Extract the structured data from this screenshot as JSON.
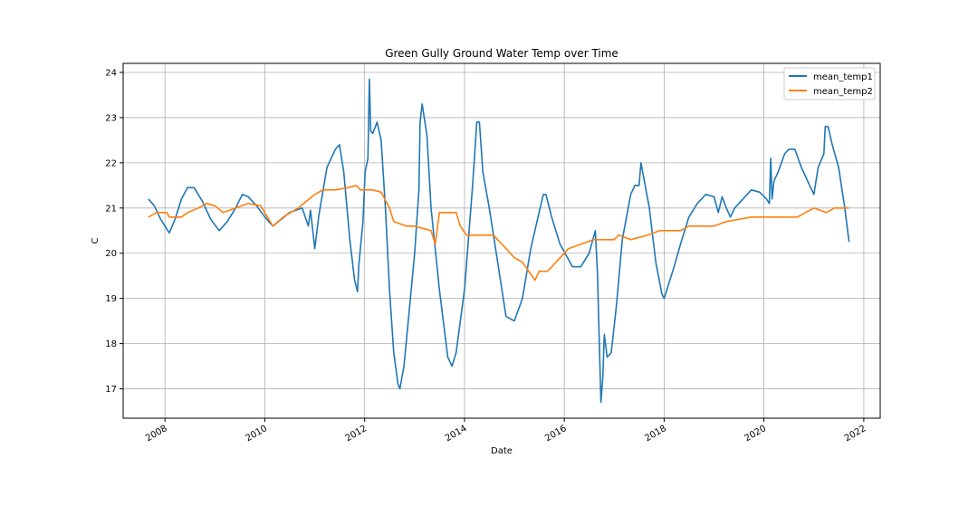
{
  "chart_data": {
    "type": "line",
    "title": "Green Gully Ground Water Temp over Time",
    "xlabel": "Date",
    "ylabel": "C",
    "x_axis_type": "date",
    "xlim": [
      "2007-03-01",
      "2022-05-01"
    ],
    "ylim": [
      16.35,
      24.2
    ],
    "grid": true,
    "legend_position": "top-right",
    "x_ticks": [
      "2008",
      "2010",
      "2012",
      "2014",
      "2016",
      "2018",
      "2020",
      "2022"
    ],
    "y_ticks": [
      17,
      18,
      19,
      20,
      21,
      22,
      23,
      24
    ],
    "series": [
      {
        "name": "mean_temp1",
        "color": "#1f77b4",
        "points": [
          [
            "2007-09-01",
            21.2
          ],
          [
            "2007-10-15",
            21.05
          ],
          [
            "2007-12-01",
            20.75
          ],
          [
            "2008-01-01",
            20.6
          ],
          [
            "2008-02-01",
            20.45
          ],
          [
            "2008-03-15",
            20.75
          ],
          [
            "2008-05-01",
            21.2
          ],
          [
            "2008-06-15",
            21.45
          ],
          [
            "2008-08-01",
            21.45
          ],
          [
            "2008-10-01",
            21.15
          ],
          [
            "2008-12-01",
            20.75
          ],
          [
            "2009-02-01",
            20.5
          ],
          [
            "2009-04-01",
            20.7
          ],
          [
            "2009-06-01",
            21.0
          ],
          [
            "2009-07-20",
            21.3
          ],
          [
            "2009-09-01",
            21.25
          ],
          [
            "2009-11-01",
            21.05
          ],
          [
            "2010-01-01",
            20.8
          ],
          [
            "2010-03-01",
            20.6
          ],
          [
            "2010-07-01",
            20.9
          ],
          [
            "2010-10-01",
            21.0
          ],
          [
            "2010-11-15",
            20.6
          ],
          [
            "2010-12-01",
            20.95
          ],
          [
            "2011-01-01",
            20.1
          ],
          [
            "2011-02-01",
            20.85
          ],
          [
            "2011-04-01",
            21.9
          ],
          [
            "2011-06-01",
            22.3
          ],
          [
            "2011-07-01",
            22.4
          ],
          [
            "2011-08-01",
            21.8
          ],
          [
            "2011-09-15",
            20.3
          ],
          [
            "2011-10-20",
            19.4
          ],
          [
            "2011-11-10",
            19.15
          ],
          [
            "2011-11-20",
            19.75
          ],
          [
            "2011-12-20",
            20.7
          ],
          [
            "2012-01-05",
            21.8
          ],
          [
            "2012-01-25",
            22.1
          ],
          [
            "2012-02-05",
            23.85
          ],
          [
            "2012-02-15",
            22.7
          ],
          [
            "2012-03-01",
            22.65
          ],
          [
            "2012-04-01",
            22.9
          ],
          [
            "2012-05-01",
            22.5
          ],
          [
            "2012-06-01",
            21.0
          ],
          [
            "2012-07-01",
            19.2
          ],
          [
            "2012-08-01",
            17.8
          ],
          [
            "2012-09-01",
            17.1
          ],
          [
            "2012-09-15",
            17.0
          ],
          [
            "2012-10-15",
            17.5
          ],
          [
            "2012-12-01",
            19.0
          ],
          [
            "2013-01-01",
            20.0
          ],
          [
            "2013-02-01",
            21.4
          ],
          [
            "2013-02-10",
            22.9
          ],
          [
            "2013-02-25",
            23.3
          ],
          [
            "2013-04-01",
            22.6
          ],
          [
            "2013-05-01",
            21.0
          ],
          [
            "2013-07-01",
            19.2
          ],
          [
            "2013-09-01",
            17.7
          ],
          [
            "2013-10-01",
            17.5
          ],
          [
            "2013-11-01",
            17.8
          ],
          [
            "2014-01-01",
            19.2
          ],
          [
            "2014-03-01",
            21.5
          ],
          [
            "2014-04-01",
            22.9
          ],
          [
            "2014-04-20",
            22.9
          ],
          [
            "2014-05-15",
            21.8
          ],
          [
            "2014-07-01",
            21.0
          ],
          [
            "2014-09-01",
            19.8
          ],
          [
            "2014-11-01",
            18.6
          ],
          [
            "2015-01-01",
            18.5
          ],
          [
            "2015-03-01",
            19.0
          ],
          [
            "2015-05-01",
            20.1
          ],
          [
            "2015-07-01",
            20.9
          ],
          [
            "2015-08-01",
            21.3
          ],
          [
            "2015-08-20",
            21.3
          ],
          [
            "2015-10-01",
            20.8
          ],
          [
            "2015-12-01",
            20.2
          ],
          [
            "2016-03-01",
            19.7
          ],
          [
            "2016-05-01",
            19.7
          ],
          [
            "2016-07-01",
            20.0
          ],
          [
            "2016-08-15",
            20.5
          ],
          [
            "2016-09-01",
            19.5
          ],
          [
            "2016-09-10",
            18.4
          ],
          [
            "2016-09-25",
            16.7
          ],
          [
            "2016-10-10",
            17.3
          ],
          [
            "2016-10-20",
            18.2
          ],
          [
            "2016-11-10",
            17.7
          ],
          [
            "2016-12-10",
            17.8
          ],
          [
            "2017-01-15",
            18.8
          ],
          [
            "2017-03-01",
            20.3
          ],
          [
            "2017-05-01",
            21.3
          ],
          [
            "2017-06-01",
            21.5
          ],
          [
            "2017-07-01",
            21.5
          ],
          [
            "2017-07-15",
            22.0
          ],
          [
            "2017-09-15",
            21.0
          ],
          [
            "2017-11-01",
            19.8
          ],
          [
            "2017-12-15",
            19.1
          ],
          [
            "2018-01-01",
            19.0
          ],
          [
            "2018-03-15",
            19.7
          ],
          [
            "2018-05-01",
            20.2
          ],
          [
            "2018-07-01",
            20.8
          ],
          [
            "2018-09-01",
            21.1
          ],
          [
            "2018-11-01",
            21.3
          ],
          [
            "2019-01-01",
            21.25
          ],
          [
            "2019-02-01",
            20.9
          ],
          [
            "2019-03-01",
            21.25
          ],
          [
            "2019-04-01",
            21.0
          ],
          [
            "2019-05-01",
            20.8
          ],
          [
            "2019-06-01",
            21.0
          ],
          [
            "2019-08-01",
            21.2
          ],
          [
            "2019-10-01",
            21.4
          ],
          [
            "2019-12-01",
            21.35
          ],
          [
            "2020-01-20",
            21.2
          ],
          [
            "2020-02-10",
            21.1
          ],
          [
            "2020-02-20",
            22.1
          ],
          [
            "2020-03-01",
            21.2
          ],
          [
            "2020-03-15",
            21.6
          ],
          [
            "2020-04-15",
            21.8
          ],
          [
            "2020-06-01",
            22.2
          ],
          [
            "2020-07-01",
            22.3
          ],
          [
            "2020-08-15",
            22.3
          ],
          [
            "2020-10-01",
            21.9
          ],
          [
            "2020-12-01",
            21.5
          ],
          [
            "2021-01-01",
            21.3
          ],
          [
            "2021-02-01",
            21.9
          ],
          [
            "2021-03-15",
            22.2
          ],
          [
            "2021-03-25",
            22.8
          ],
          [
            "2021-04-15",
            22.8
          ],
          [
            "2021-05-15",
            22.4
          ],
          [
            "2021-07-01",
            21.9
          ],
          [
            "2021-08-15",
            21.0
          ],
          [
            "2021-09-15",
            20.25
          ]
        ]
      },
      {
        "name": "mean_temp2",
        "color": "#ff7f0e",
        "points": [
          [
            "2007-09-01",
            20.8
          ],
          [
            "2007-11-01",
            20.9
          ],
          [
            "2008-01-15",
            20.9
          ],
          [
            "2008-02-01",
            20.8
          ],
          [
            "2008-05-01",
            20.8
          ],
          [
            "2008-06-15",
            20.9
          ],
          [
            "2008-09-01",
            21.0
          ],
          [
            "2008-11-01",
            21.1
          ],
          [
            "2009-01-01",
            21.05
          ],
          [
            "2009-03-01",
            20.9
          ],
          [
            "2009-06-01",
            21.0
          ],
          [
            "2009-09-01",
            21.1
          ],
          [
            "2009-12-01",
            21.05
          ],
          [
            "2010-03-01",
            20.6
          ],
          [
            "2010-05-15",
            20.8
          ],
          [
            "2010-09-01",
            21.0
          ],
          [
            "2011-01-01",
            21.3
          ],
          [
            "2011-03-01",
            21.4
          ],
          [
            "2011-06-01",
            21.4
          ],
          [
            "2011-09-01",
            21.45
          ],
          [
            "2011-11-01",
            21.5
          ],
          [
            "2011-12-01",
            21.4
          ],
          [
            "2012-03-01",
            21.4
          ],
          [
            "2012-05-01",
            21.35
          ],
          [
            "2012-07-01",
            21.0
          ],
          [
            "2012-08-01",
            20.7
          ],
          [
            "2012-11-01",
            20.6
          ],
          [
            "2013-01-01",
            20.6
          ],
          [
            "2013-03-01",
            20.55
          ],
          [
            "2013-05-01",
            20.5
          ],
          [
            "2013-06-01",
            20.2
          ],
          [
            "2013-07-01",
            20.9
          ],
          [
            "2013-11-01",
            20.9
          ],
          [
            "2013-12-01",
            20.6
          ],
          [
            "2014-01-15",
            20.4
          ],
          [
            "2014-04-01",
            20.4
          ],
          [
            "2014-08-01",
            20.4
          ],
          [
            "2014-10-01",
            20.2
          ],
          [
            "2015-01-01",
            19.9
          ],
          [
            "2015-03-01",
            19.8
          ],
          [
            "2015-06-01",
            19.4
          ],
          [
            "2015-07-01",
            19.6
          ],
          [
            "2015-09-01",
            19.6
          ],
          [
            "2015-11-01",
            19.8
          ],
          [
            "2016-01-01",
            20.0
          ],
          [
            "2016-02-01",
            20.1
          ],
          [
            "2016-05-01",
            20.2
          ],
          [
            "2016-08-01",
            20.3
          ],
          [
            "2017-01-01",
            20.3
          ],
          [
            "2017-02-01",
            20.4
          ],
          [
            "2017-05-01",
            20.3
          ],
          [
            "2017-09-01",
            20.4
          ],
          [
            "2017-12-01",
            20.5
          ],
          [
            "2018-05-01",
            20.5
          ],
          [
            "2018-07-01",
            20.6
          ],
          [
            "2019-01-01",
            20.6
          ],
          [
            "2019-04-01",
            20.7
          ],
          [
            "2019-10-01",
            20.8
          ],
          [
            "2020-09-01",
            20.8
          ],
          [
            "2020-11-01",
            20.9
          ],
          [
            "2021-01-01",
            21.0
          ],
          [
            "2021-04-01",
            20.9
          ],
          [
            "2021-06-01",
            21.0
          ],
          [
            "2021-09-15",
            21.0
          ]
        ]
      }
    ]
  }
}
